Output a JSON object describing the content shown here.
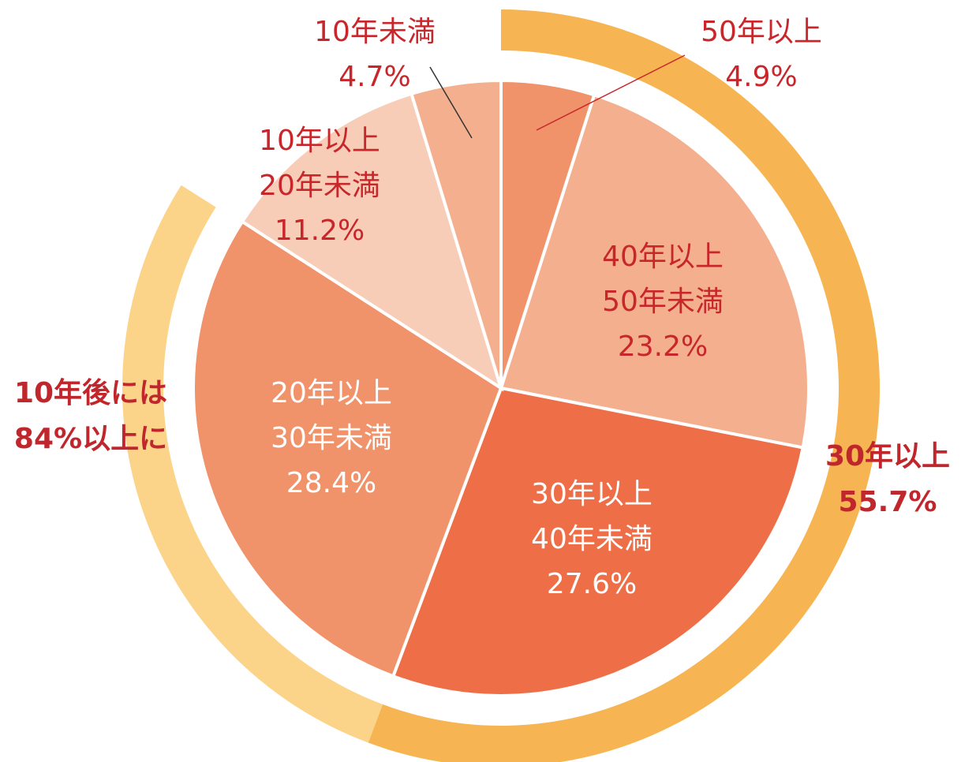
{
  "chart_data": {
    "type": "pie",
    "labels": [
      [
        "50年以上"
      ],
      [
        "40年以上",
        "50年未満"
      ],
      [
        "30年以上",
        "40年未満"
      ],
      [
        "20年以上",
        "30年未満"
      ],
      [
        "10年以上",
        "20年未満"
      ],
      [
        "10年未満"
      ]
    ],
    "values": [
      4.9,
      23.2,
      27.6,
      28.4,
      11.2,
      4.7
    ],
    "value_labels": [
      "4.9%",
      "23.2%",
      "27.6%",
      "28.4%",
      "11.2%",
      "4.7%"
    ],
    "colors": [
      "#f0926a",
      "#f4b08e",
      "#ed6e47",
      "#f0926a",
      "#f8cdb7",
      "#f4b08e"
    ],
    "annotations": [
      {
        "text": [
          "30年以上"
        ],
        "value": 55.7,
        "value_label": "55.7%",
        "color": "#f6b552"
      },
      {
        "text": [
          "10年後には"
        ],
        "value": 84,
        "value_label": "84%以上に",
        "color": "#fbd48a"
      }
    ]
  }
}
